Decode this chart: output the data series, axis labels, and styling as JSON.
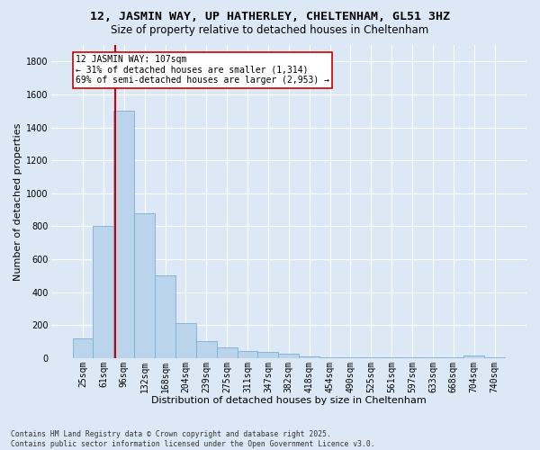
{
  "title_line1": "12, JASMIN WAY, UP HATHERLEY, CHELTENHAM, GL51 3HZ",
  "title_line2": "Size of property relative to detached houses in Cheltenham",
  "xlabel": "Distribution of detached houses by size in Cheltenham",
  "ylabel": "Number of detached properties",
  "footnote": "Contains HM Land Registry data © Crown copyright and database right 2025.\nContains public sector information licensed under the Open Government Licence v3.0.",
  "categories": [
    "25sqm",
    "61sqm",
    "96sqm",
    "132sqm",
    "168sqm",
    "204sqm",
    "239sqm",
    "275sqm",
    "311sqm",
    "347sqm",
    "382sqm",
    "418sqm",
    "454sqm",
    "490sqm",
    "525sqm",
    "561sqm",
    "597sqm",
    "633sqm",
    "668sqm",
    "704sqm",
    "740sqm"
  ],
  "values": [
    120,
    800,
    1500,
    880,
    500,
    210,
    105,
    65,
    40,
    35,
    28,
    8,
    5,
    5,
    5,
    5,
    5,
    5,
    5,
    15,
    5
  ],
  "bar_color": "#bad4ec",
  "bar_edge_color": "#7aafd4",
  "highlight_line_color": "#cc0000",
  "annotation_text": "12 JASMIN WAY: 107sqm\n← 31% of detached houses are smaller (1,314)\n69% of semi-detached houses are larger (2,953) →",
  "annotation_box_color": "#ffffff",
  "annotation_box_edge_color": "#cc0000",
  "ylim": [
    0,
    1900
  ],
  "yticks": [
    0,
    200,
    400,
    600,
    800,
    1000,
    1200,
    1400,
    1600,
    1800
  ],
  "bg_color": "#dce8f5",
  "plot_bg_color": "#dce8f5",
  "grid_color": "#ffffff",
  "title_fontsize": 9.5,
  "subtitle_fontsize": 8.5,
  "axis_label_fontsize": 8,
  "tick_fontsize": 7,
  "annot_fontsize": 7,
  "footnote_fontsize": 5.8
}
